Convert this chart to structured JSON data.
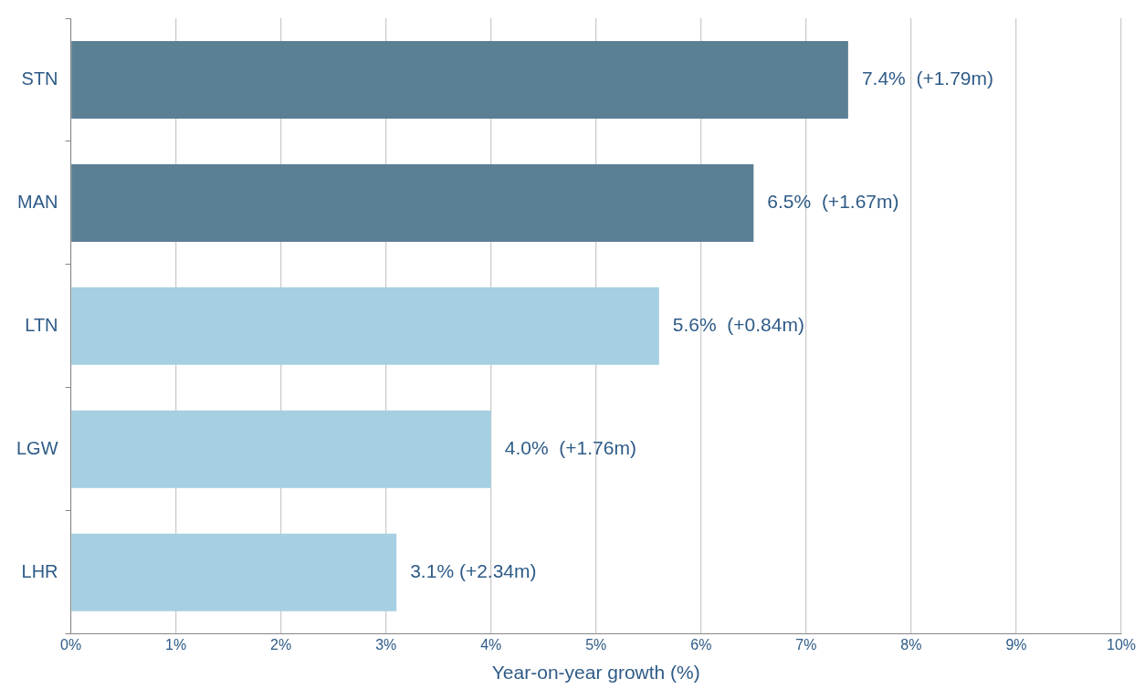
{
  "chart_data": {
    "type": "bar",
    "orientation": "horizontal",
    "xlabel": "Year-on-year growth (%)",
    "categories": [
      "STN",
      "MAN",
      "LTN",
      "LGW",
      "LHR"
    ],
    "values": [
      7.4,
      6.5,
      5.6,
      4.0,
      3.1
    ],
    "colors": [
      "#5b7f93",
      "#5b7f93",
      "#a6cfe2",
      "#a6cfe2",
      "#a6cfe2"
    ],
    "value_labels": [
      "7.4%  (+1.79m)",
      "6.5%  (+1.67m)",
      "5.6%  (+0.84m)",
      "4.0%  (+1.76m)",
      "3.1% (+2.34m)"
    ],
    "xlim": [
      0,
      10
    ],
    "xticks": [
      {
        "value": 0,
        "label": "0%"
      },
      {
        "value": 1,
        "label": "1%"
      },
      {
        "value": 2,
        "label": "2%"
      },
      {
        "value": 3,
        "label": "3%"
      },
      {
        "value": 4,
        "label": "4%"
      },
      {
        "value": 5,
        "label": "5%"
      },
      {
        "value": 6,
        "label": "6%"
      },
      {
        "value": 7,
        "label": "7%"
      },
      {
        "value": 8,
        "label": "8%"
      },
      {
        "value": 9,
        "label": "9%"
      },
      {
        "value": 10,
        "label": "10%"
      }
    ],
    "grid": "x",
    "legend": false
  }
}
